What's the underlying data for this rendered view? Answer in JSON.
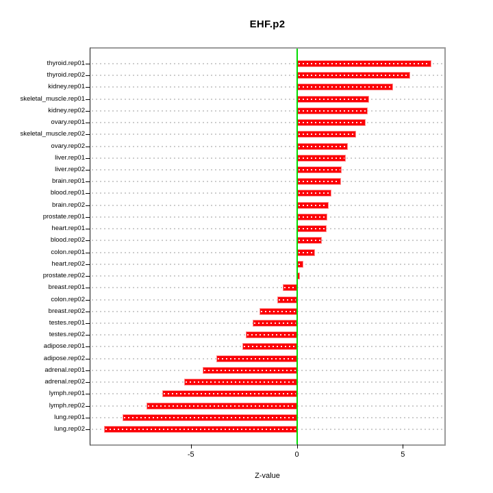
{
  "title": "EHF.p2",
  "chart_data": {
    "type": "bar",
    "orientation": "horizontal",
    "title": "EHF.p2",
    "xlabel": "Z-value",
    "categories": [
      "thyroid.rep01",
      "thyroid.rep02",
      "kidney.rep01",
      "skeletal_muscle.rep01",
      "kidney.rep02",
      "ovary.rep01",
      "skeletal_muscle.rep02",
      "ovary.rep02",
      "liver.rep01",
      "liver.rep02",
      "brain.rep01",
      "blood.rep01",
      "brain.rep02",
      "prostate.rep01",
      "heart.rep01",
      "blood.rep02",
      "colon.rep01",
      "heart.rep02",
      "prostate.rep02",
      "breast.rep01",
      "colon.rep02",
      "breast.rep02",
      "testes.rep01",
      "testes.rep02",
      "adipose.rep01",
      "adipose.rep02",
      "adrenal.rep01",
      "adrenal.rep02",
      "lymph.rep01",
      "lymph.rep02",
      "lung.rep01",
      "lung.rep02"
    ],
    "values": [
      6.35,
      5.35,
      4.55,
      3.4,
      3.33,
      3.23,
      2.8,
      2.4,
      2.3,
      2.12,
      2.08,
      1.63,
      1.49,
      1.43,
      1.39,
      1.17,
      0.84,
      0.32,
      0.13,
      -0.66,
      -0.91,
      -1.77,
      -2.09,
      -2.42,
      -2.56,
      -3.79,
      -4.43,
      -5.33,
      -6.35,
      -7.09,
      -8.22,
      -9.08
    ],
    "x_ticks": [
      "-5",
      "0",
      "5"
    ],
    "x_tick_values": [
      -5,
      0,
      5
    ],
    "xlim": [
      -9.74,
      6.96
    ],
    "grid": true,
    "bar_color": "#fb0007",
    "bar_edge_color": "#ff9090",
    "zero_line_color": "#00dc00",
    "grid_color": "#cccccc",
    "box_color": "#9a9a9a"
  }
}
